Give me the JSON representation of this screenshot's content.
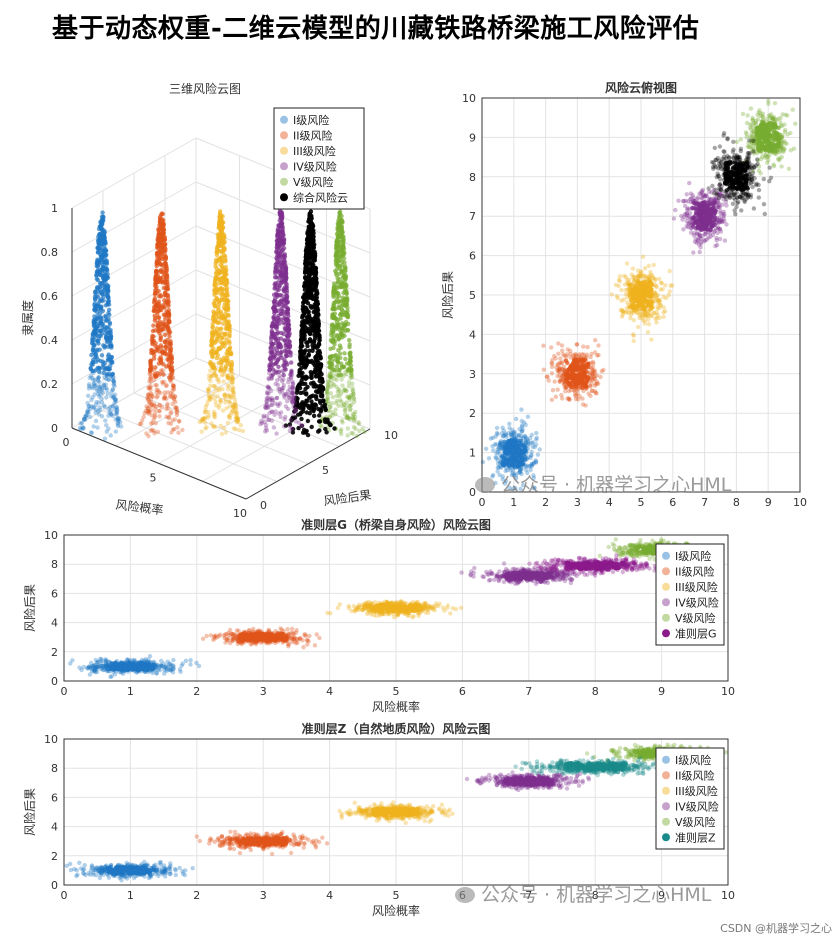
{
  "page": {
    "title": "基于动态权重-二维云模型的川藏铁路桥梁施工风险评估",
    "watermark": "公众号 · 机器学习之心HML",
    "footer": "CSDN @机器学习之心"
  },
  "colors": {
    "I": "#1f77c4",
    "II": "#e0541a",
    "III": "#efb21e",
    "IV": "#7e2f8e",
    "V": "#77ac30",
    "comp": "#000000",
    "G": "#8b1a8b",
    "Z": "#1a8a8a"
  },
  "chart_data": [
    {
      "id": "cloud3d",
      "type": "scatter",
      "subtype": "3d-cloud",
      "title": "三维风险云图",
      "xlabel": "风险概率",
      "ylabel": "风险后果",
      "zlabel": "隶属度",
      "xlim": [
        0,
        10
      ],
      "ylim": [
        0,
        10
      ],
      "zlim": [
        0,
        1
      ],
      "xticks": [
        "0",
        "5",
        "10"
      ],
      "yticks": [
        "0",
        "5",
        "10"
      ],
      "zticks": [
        "0",
        "0.2",
        "0.4",
        "0.6",
        "0.8",
        "1"
      ],
      "grid": true,
      "legend_position": "top-right",
      "series": [
        {
          "name": "I级风险",
          "color_key": "I",
          "center": [
            1,
            1
          ]
        },
        {
          "name": "II级风险",
          "color_key": "II",
          "center": [
            3,
            3
          ]
        },
        {
          "name": "III级风险",
          "color_key": "III",
          "center": [
            5,
            5
          ]
        },
        {
          "name": "IV级风险",
          "color_key": "IV",
          "center": [
            7,
            7
          ]
        },
        {
          "name": "V级风险",
          "color_key": "V",
          "center": [
            9,
            9
          ]
        },
        {
          "name": "综合风险云",
          "color_key": "comp",
          "center": [
            8,
            8
          ]
        }
      ]
    },
    {
      "id": "top",
      "type": "scatter",
      "title": "风险云俯视图",
      "xlabel": "",
      "ylabel": "风险后果",
      "xlim": [
        0,
        10
      ],
      "ylim": [
        0,
        10
      ],
      "xticks": [
        "0",
        "1",
        "2",
        "3",
        "4",
        "5",
        "6",
        "7",
        "8",
        "9",
        "10"
      ],
      "yticks": [
        "0",
        "1",
        "2",
        "3",
        "4",
        "5",
        "6",
        "7",
        "8",
        "9",
        "10"
      ],
      "grid": true,
      "series": [
        {
          "color_key": "I",
          "center": [
            1,
            1
          ],
          "spread": [
            0.33,
            0.33
          ]
        },
        {
          "color_key": "II",
          "center": [
            3,
            3
          ],
          "spread": [
            0.33,
            0.33
          ]
        },
        {
          "color_key": "III",
          "center": [
            5,
            5
          ],
          "spread": [
            0.33,
            0.33
          ]
        },
        {
          "color_key": "IV",
          "center": [
            7,
            7
          ],
          "spread": [
            0.33,
            0.33
          ]
        },
        {
          "color_key": "V",
          "center": [
            9,
            9
          ],
          "spread": [
            0.33,
            0.33
          ]
        },
        {
          "color_key": "comp",
          "center": [
            8,
            8
          ],
          "spread": [
            0.33,
            0.33
          ]
        }
      ]
    },
    {
      "id": "G",
      "type": "scatter",
      "title": "准则层G（桥梁自身风险）风险云图",
      "xlabel": "风险概率",
      "ylabel": "风险后果",
      "xlim": [
        0,
        10
      ],
      "ylim": [
        0,
        10
      ],
      "xticks": [
        "0",
        "1",
        "2",
        "3",
        "4",
        "5",
        "6",
        "7",
        "8",
        "9",
        "10"
      ],
      "yticks": [
        "0",
        "2",
        "4",
        "6",
        "8",
        "10"
      ],
      "grid": true,
      "legend_position": "top-right",
      "series": [
        {
          "name": "I级风险",
          "color_key": "I",
          "center": [
            1,
            1
          ],
          "spread": [
            0.32,
            0.22
          ]
        },
        {
          "name": "II级风险",
          "color_key": "II",
          "center": [
            3,
            3
          ],
          "spread": [
            0.32,
            0.22
          ]
        },
        {
          "name": "III级风险",
          "color_key": "III",
          "center": [
            5,
            5
          ],
          "spread": [
            0.32,
            0.22
          ]
        },
        {
          "name": "IV级风险",
          "color_key": "IV",
          "center": [
            7,
            7.2
          ],
          "spread": [
            0.32,
            0.22
          ]
        },
        {
          "name": "V级风险",
          "color_key": "V",
          "center": [
            9,
            9
          ],
          "spread": [
            0.32,
            0.22
          ]
        },
        {
          "name": "准则层G",
          "color_key": "G",
          "center": [
            8,
            7.9
          ],
          "spread": [
            0.4,
            0.22
          ]
        }
      ]
    },
    {
      "id": "Z",
      "type": "scatter",
      "title": "准则层Z（自然地质风险）风险云图",
      "xlabel": "风险概率",
      "ylabel": "风险后果",
      "xlim": [
        0,
        10
      ],
      "ylim": [
        0,
        10
      ],
      "xticks": [
        "0",
        "1",
        "2",
        "3",
        "4",
        "5",
        "6",
        "7",
        "8",
        "9",
        "10"
      ],
      "yticks": [
        "0",
        "2",
        "4",
        "6",
        "8",
        "10"
      ],
      "grid": true,
      "legend_position": "top-right",
      "series": [
        {
          "name": "I级风险",
          "color_key": "I",
          "center": [
            1,
            1
          ],
          "spread": [
            0.32,
            0.22
          ]
        },
        {
          "name": "II级风险",
          "color_key": "II",
          "center": [
            3,
            3
          ],
          "spread": [
            0.32,
            0.22
          ]
        },
        {
          "name": "III级风险",
          "color_key": "III",
          "center": [
            5,
            5
          ],
          "spread": [
            0.32,
            0.22
          ]
        },
        {
          "name": "IV级风险",
          "color_key": "IV",
          "center": [
            7,
            7.1
          ],
          "spread": [
            0.32,
            0.22
          ]
        },
        {
          "name": "V级风险",
          "color_key": "V",
          "center": [
            9,
            9
          ],
          "spread": [
            0.32,
            0.22
          ]
        },
        {
          "name": "准则层Z",
          "color_key": "Z",
          "center": [
            8,
            8.1
          ],
          "spread": [
            0.42,
            0.22
          ]
        }
      ]
    }
  ]
}
